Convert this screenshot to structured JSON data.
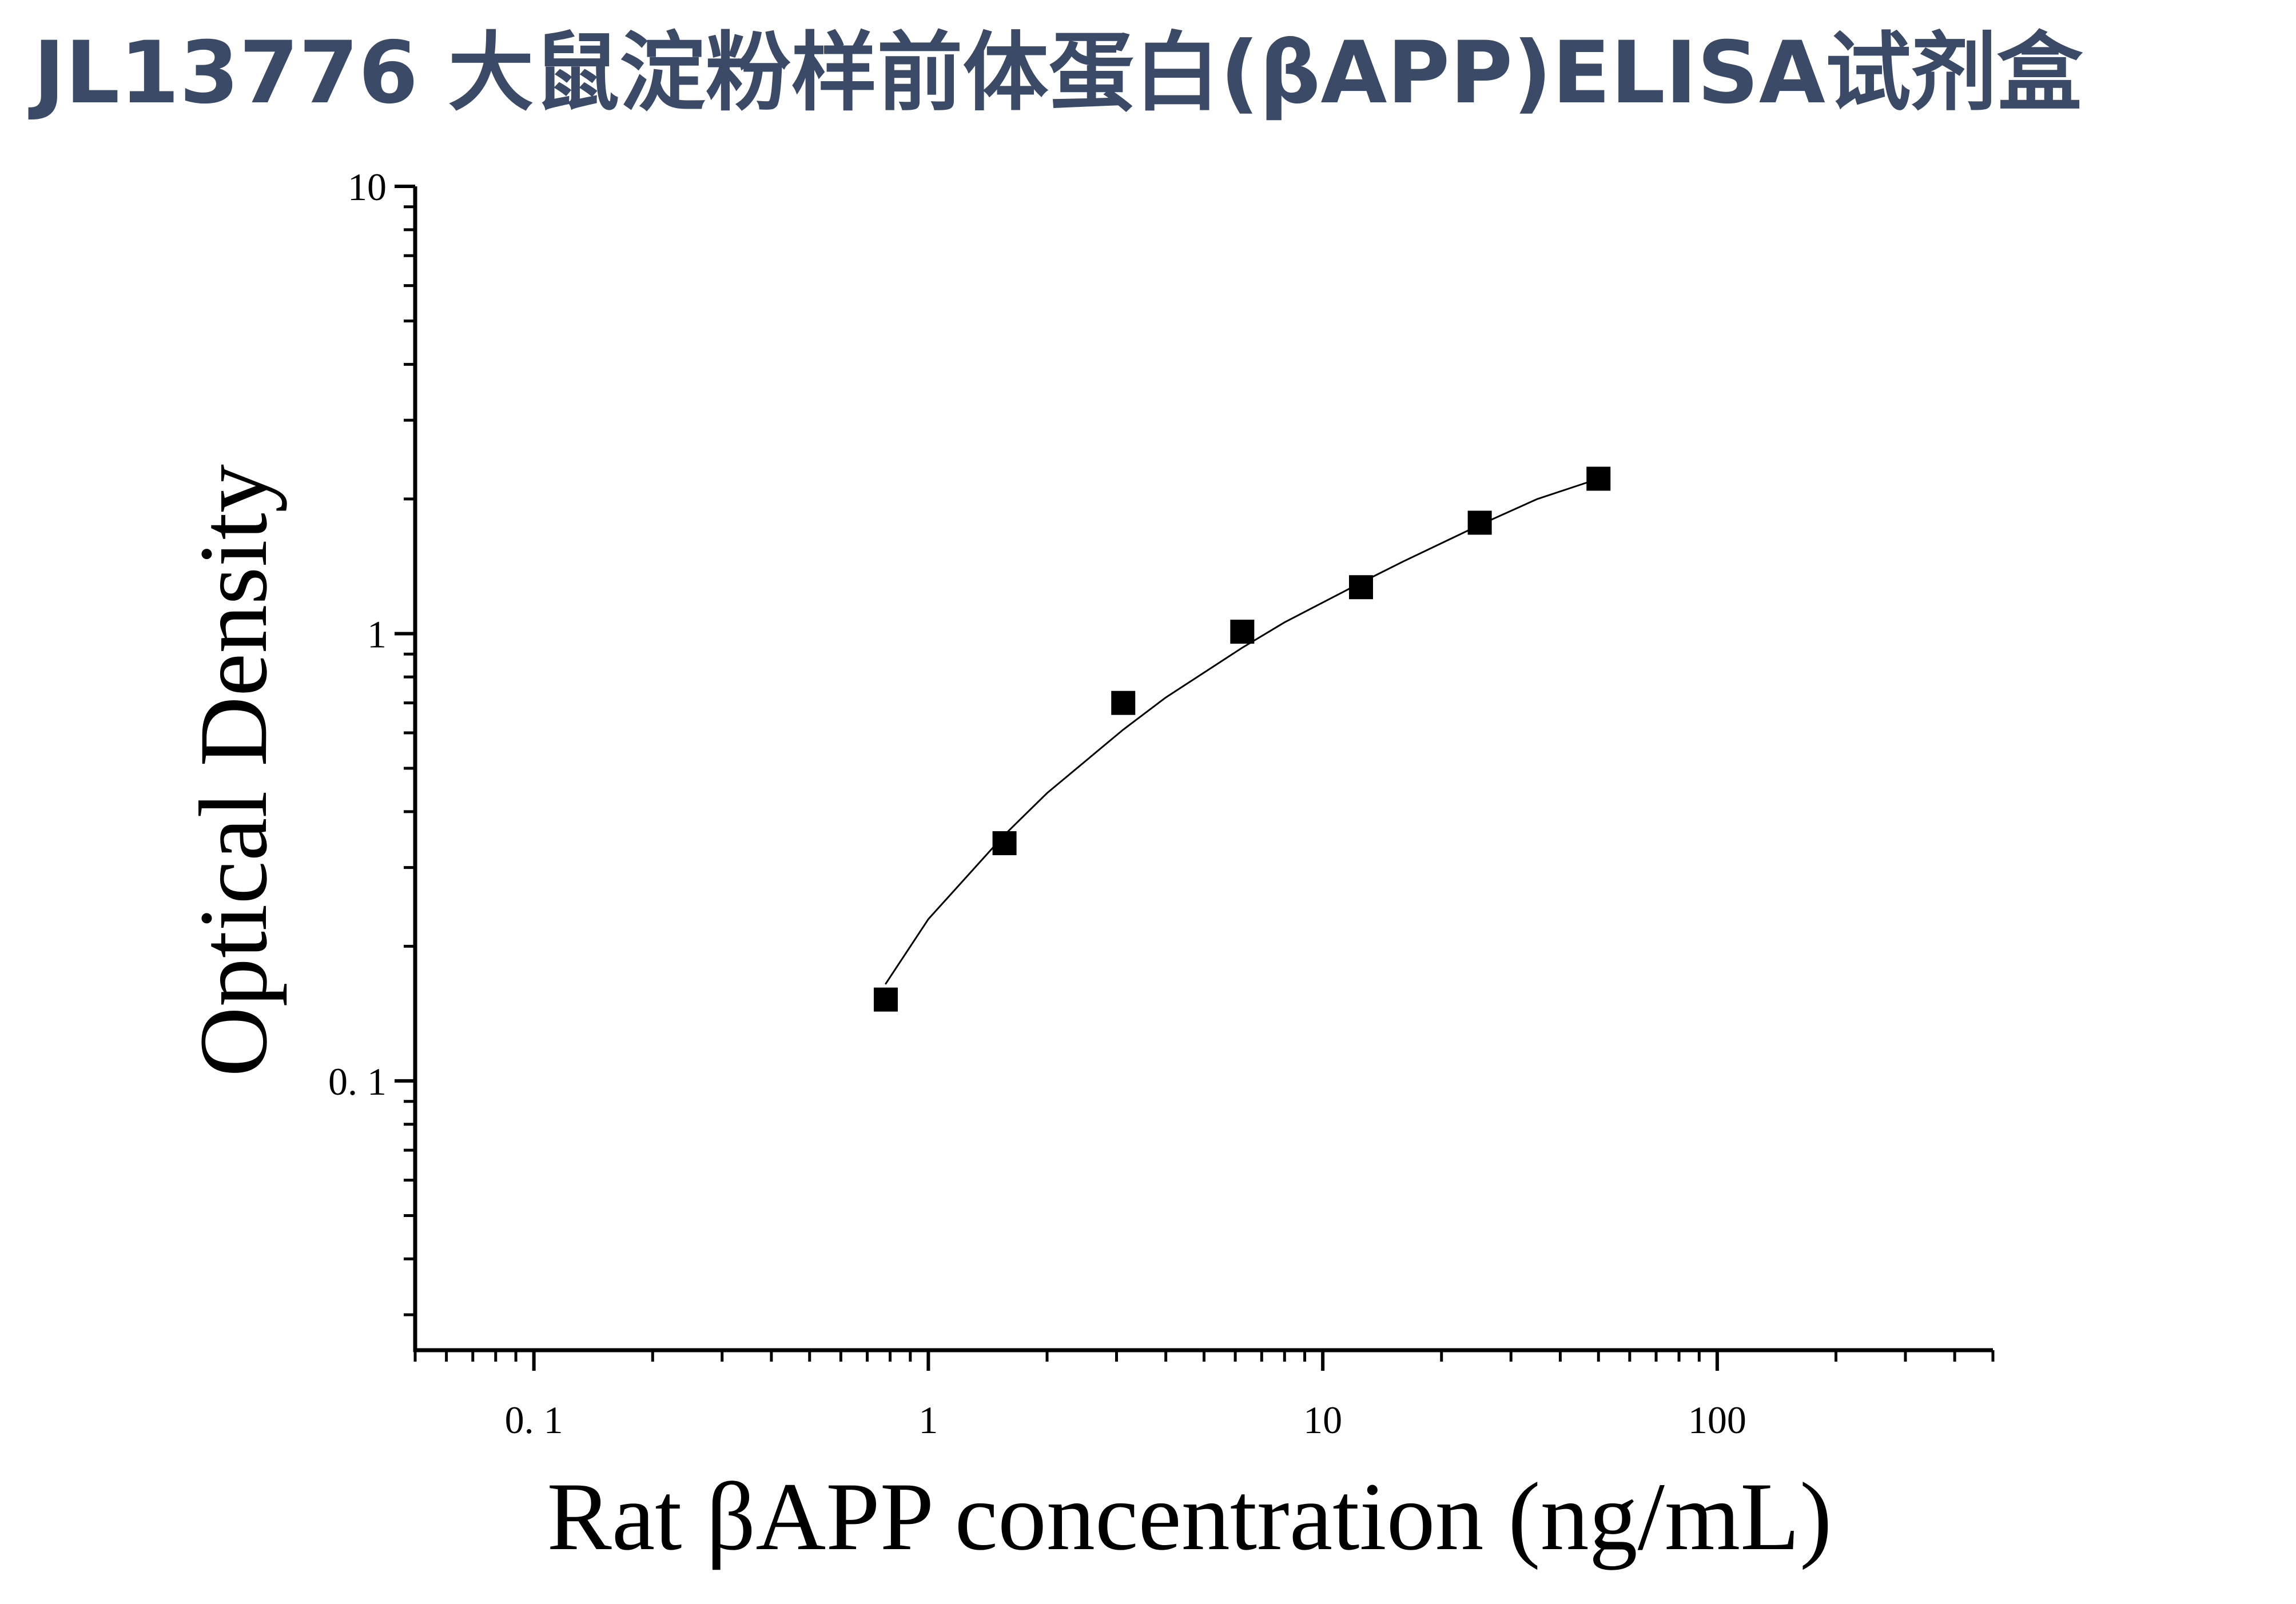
{
  "page": {
    "title": "JL13776 大鼠淀粉样前体蛋白(βAPP)ELISA试剂盒"
  },
  "chart_data": {
    "type": "scatter",
    "title": "",
    "xlabel": "Rat βAPP concentration (ng/mL)",
    "ylabel": "Optical Density",
    "x_scale": "log",
    "y_scale": "log",
    "xlim": [
      0.05,
      500
    ],
    "ylim": [
      0.025,
      10
    ],
    "x_ticks": [
      {
        "value": 0.1,
        "label": "0. 1"
      },
      {
        "value": 1,
        "label": "1"
      },
      {
        "value": 10,
        "label": "10"
      },
      {
        "value": 100,
        "label": "100"
      }
    ],
    "y_ticks": [
      {
        "value": 0.1,
        "label": "0. 1"
      },
      {
        "value": 1,
        "label": "1"
      },
      {
        "value": 10,
        "label": "10"
      }
    ],
    "grid": false,
    "legend": "none",
    "marker_color": "#000000",
    "series": [
      {
        "marker": "square",
        "x": [
          0.78,
          1.56,
          3.12,
          6.25,
          12.5,
          25,
          50
        ],
        "y": [
          0.152,
          0.34,
          0.7,
          1.01,
          1.27,
          1.77,
          2.22
        ]
      }
    ],
    "fit_curve": {
      "type": "line",
      "color": "#000000",
      "x": [
        0.78,
        1.0,
        1.56,
        2.0,
        3.12,
        4.0,
        6.25,
        8.0,
        12.5,
        16.0,
        25,
        35,
        50
      ],
      "y": [
        0.165,
        0.23,
        0.355,
        0.44,
        0.61,
        0.72,
        0.93,
        1.06,
        1.3,
        1.45,
        1.75,
        2.0,
        2.22
      ]
    }
  }
}
